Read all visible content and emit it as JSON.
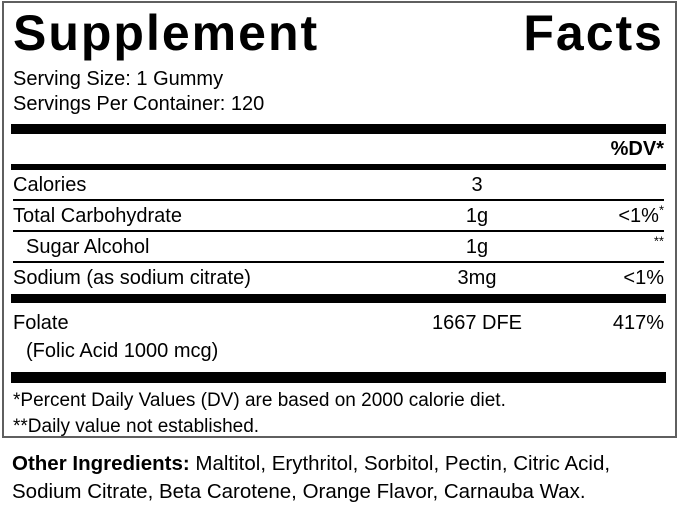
{
  "colors": {
    "text": "#000000",
    "bar": "#000000",
    "box_border": "#5f5f5f",
    "background": "#ffffff"
  },
  "supplement_facts": {
    "title_word_1": "Supplement",
    "title_word_2": "Facts",
    "serving_size": "Serving Size: 1 Gummy",
    "servings_per_container": "Servings Per Container: 120",
    "dv_column_header": "%DV*",
    "rows": [
      {
        "name": "Calories",
        "amount": "3",
        "dv": "",
        "dv_sup": ""
      },
      {
        "name": "Total Carbohydrate",
        "amount": "1g",
        "dv": "<1%",
        "dv_sup": "*"
      },
      {
        "name": "Sugar Alcohol",
        "amount": "1g",
        "dv": "",
        "dv_sup": "**"
      },
      {
        "name": "Sodium (as sodium citrate)",
        "amount": "3mg",
        "dv": "<1%",
        "dv_sup": ""
      }
    ],
    "folate": {
      "name": "Folate",
      "detail": "(Folic Acid 1000 mcg)",
      "amount": "1667 DFE",
      "dv": "417%"
    },
    "footnote_1": "*Percent Daily Values (DV) are based on 2000 calorie diet.",
    "footnote_2": "**Daily value not established."
  },
  "other_ingredients": {
    "label": "Other Ingredients:",
    "text": " Maltitol, Erythritol, Sorbitol, Pectin, Citric Acid, Sodium Citrate, Beta Carotene, Orange Flavor, Carnauba Wax."
  }
}
